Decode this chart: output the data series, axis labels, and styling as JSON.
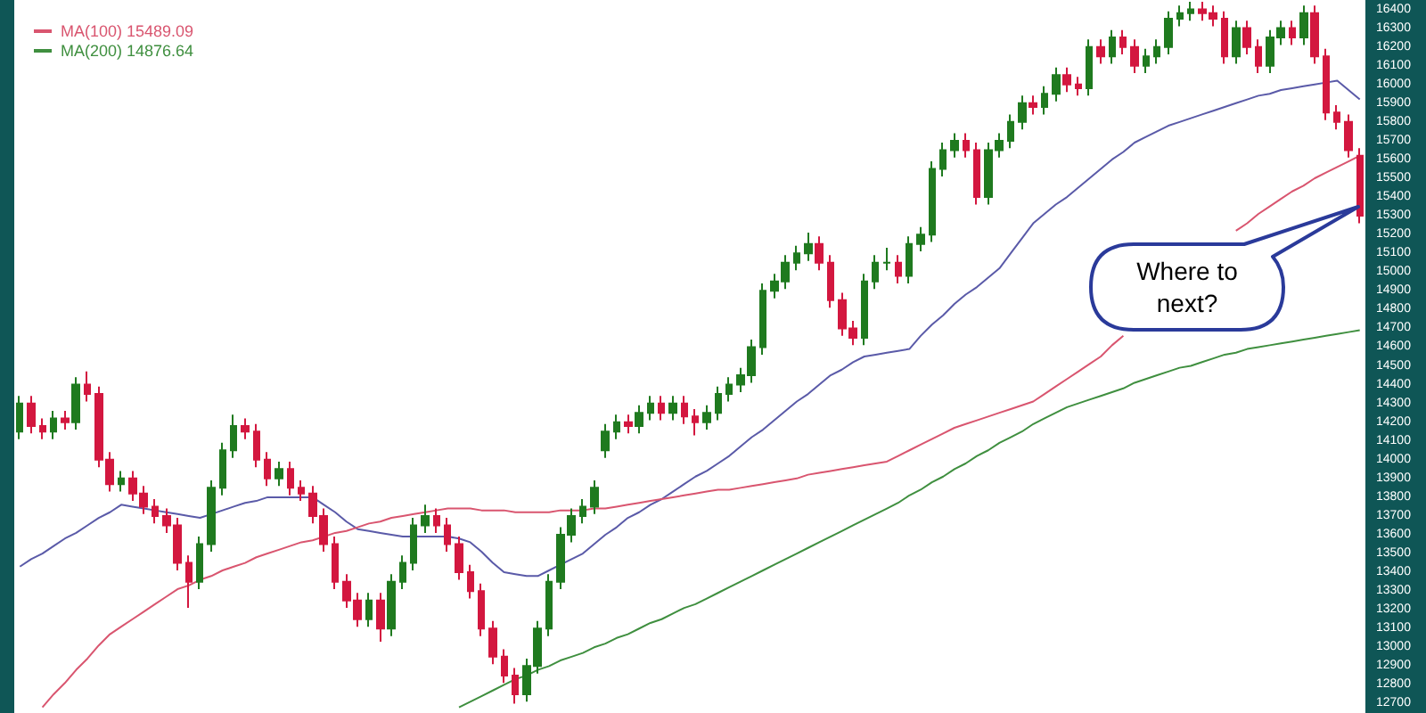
{
  "chart_data": {
    "type": "candlestick",
    "legend": "top left",
    "line_style": "solid",
    "tick_labels": "y",
    "colors": [
      "#1f7a1f",
      "#d3173f",
      "#d3173f",
      "#1f7a1f",
      "#d3173f",
      "#1f7a1f",
      "#d3173f",
      "#d3173f",
      "#d3173f",
      "#1f7a1f",
      "#d3173f",
      "#d3173f",
      "#d3173f",
      "#d3173f",
      "#d3173f",
      "#d3173f",
      "#1f7a1f",
      "#1f7a1f",
      "#1f7a1f",
      "#1f7a1f",
      "#d3173f",
      "#d3173f",
      "#d3173f",
      "#1f7a1f",
      "#d3173f",
      "#d3173f",
      "#d3173f",
      "#d3173f",
      "#d3173f",
      "#d3173f",
      "#d3173f",
      "#1f7a1f",
      "#d3173f",
      "#1f7a1f",
      "#1f7a1f",
      "#1f7a1f",
      "#1f7a1f",
      "#d3173f",
      "#d3173f",
      "#d3173f",
      "#d3173f",
      "#d3173f",
      "#d3173f",
      "#d3173f",
      "#d3173f",
      "#1f7a1f",
      "#1f7a1f",
      "#1f7a1f",
      "#1f7a1f",
      "#1f7a1f",
      "#1f7a1f",
      "#1f7a1f",
      "#1f7a1f",
      "#1f7a1f",
      "#d3173f",
      "#1f7a1f",
      "#1f7a1f",
      "#d3173f",
      "#1f7a1f",
      "#d3173f",
      "#d3173f",
      "#1f7a1f",
      "#1f7a1f",
      "#1f7a1f",
      "#1f7a1f",
      "#1f7a1f",
      "#1f7a1f",
      "#1f7a1f",
      "#1f7a1f",
      "#1f7a1f",
      "#1f7a1f",
      "#d3173f",
      "#d3173f",
      "#d3173f",
      "#d3173f",
      "#1f7a1f",
      "#1f7a1f",
      "#1f7a1f",
      "#d3173f",
      "#1f7a1f",
      "#1f7a1f",
      "#1f7a1f",
      "#1f7a1f",
      "#1f7a1f",
      "#d3173f",
      "#d3173f",
      "#1f7a1f",
      "#1f7a1f",
      "#1f7a1f",
      "#1f7a1f",
      "#d3173f",
      "#1f7a1f",
      "#1f7a1f",
      "#d3173f",
      "#d3173f",
      "#1f7a1f",
      "#d3173f",
      "#1f7a1f",
      "#d3173f",
      "#d3173f",
      "#1f7a1f",
      "#1f7a1f",
      "#1f7a1f",
      "#1f7a1f",
      "#1f7a1f",
      "#d3173f",
      "#d3173f",
      "#d3173f",
      "#1f7a1f",
      "#d3173f",
      "#d3173f",
      "#1f7a1f",
      "#1f7a1f",
      "#d3173f",
      "#1f7a1f",
      "#d3173f",
      "#d3173f",
      "#d3173f",
      "#d3173f",
      "#d3173f"
    ],
    "ylim": [
      12650,
      16450
    ],
    "yticks": [
      12700,
      12800,
      12900,
      13000,
      13100,
      13200,
      13300,
      13400,
      13500,
      13600,
      13700,
      13800,
      13900,
      14000,
      14100,
      14200,
      14300,
      14400,
      14500,
      14600,
      14700,
      14800,
      14900,
      15000,
      15100,
      15200,
      15300,
      15400,
      15500,
      15600,
      15700,
      15800,
      15900,
      16000,
      16100,
      16200,
      16300,
      16400
    ],
    "annotations": [
      "Where to next?"
    ],
    "categories": [
      null,
      null,
      null,
      null,
      null,
      null,
      null,
      null,
      null,
      null,
      null,
      null,
      null,
      null,
      null,
      null,
      null,
      null,
      null,
      null,
      null,
      null,
      null,
      null,
      null,
      null,
      null,
      null,
      null,
      null,
      null,
      null,
      null,
      null,
      null,
      null,
      null,
      null,
      null,
      null,
      null,
      null,
      null,
      null,
      null,
      null,
      null,
      null,
      null,
      null,
      null,
      null,
      null,
      null,
      null,
      null,
      null,
      null,
      null,
      null,
      null,
      null,
      null,
      null,
      null,
      null,
      null,
      null,
      null,
      null,
      null,
      null,
      null,
      null,
      null,
      null,
      null,
      null,
      null,
      null,
      null,
      null,
      null,
      null,
      null,
      null,
      null,
      null,
      null,
      null,
      null,
      null,
      null,
      null,
      null,
      null,
      null,
      null,
      null,
      null,
      null,
      null,
      null,
      null,
      null,
      null,
      null,
      null,
      null,
      null,
      null,
      null,
      null,
      null,
      null,
      null,
      null,
      null,
      null,
      null
    ],
    "ohlc": [
      [
        14150,
        14340,
        14110,
        14300
      ],
      [
        14300,
        14340,
        14140,
        14180
      ],
      [
        14180,
        14220,
        14110,
        14150
      ],
      [
        14150,
        14260,
        14110,
        14220
      ],
      [
        14220,
        14260,
        14160,
        14200
      ],
      [
        14200,
        14440,
        14160,
        14400
      ],
      [
        14400,
        14470,
        14310,
        14350
      ],
      [
        14350,
        14390,
        13960,
        14000
      ],
      [
        14000,
        14040,
        13830,
        13870
      ],
      [
        13870,
        13940,
        13830,
        13900
      ],
      [
        13900,
        13940,
        13780,
        13820
      ],
      [
        13820,
        13860,
        13710,
        13750
      ],
      [
        13750,
        13790,
        13660,
        13700
      ],
      [
        13700,
        13740,
        13610,
        13650
      ],
      [
        13650,
        13690,
        13410,
        13450
      ],
      [
        13450,
        13490,
        13210,
        13350
      ],
      [
        13350,
        13590,
        13310,
        13550
      ],
      [
        13550,
        13890,
        13510,
        13850
      ],
      [
        13850,
        14090,
        13810,
        14050
      ],
      [
        14050,
        14240,
        14010,
        14180
      ],
      [
        14180,
        14220,
        14110,
        14150
      ],
      [
        14150,
        14190,
        13960,
        14000
      ],
      [
        14000,
        14040,
        13860,
        13900
      ],
      [
        13900,
        13990,
        13860,
        13950
      ],
      [
        13950,
        13990,
        13810,
        13850
      ],
      [
        13850,
        13890,
        13780,
        13820
      ],
      [
        13820,
        13860,
        13660,
        13700
      ],
      [
        13700,
        13740,
        13510,
        13550
      ],
      [
        13550,
        13590,
        13310,
        13350
      ],
      [
        13350,
        13390,
        13210,
        13250
      ],
      [
        13250,
        13290,
        13110,
        13150
      ],
      [
        13150,
        13290,
        13110,
        13250
      ],
      [
        13250,
        13290,
        13030,
        13100
      ],
      [
        13100,
        13390,
        13060,
        13350
      ],
      [
        13350,
        13490,
        13310,
        13450
      ],
      [
        13450,
        13690,
        13410,
        13650
      ],
      [
        13650,
        13760,
        13610,
        13700
      ],
      [
        13700,
        13740,
        13610,
        13650
      ],
      [
        13650,
        13690,
        13510,
        13550
      ],
      [
        13550,
        13590,
        13360,
        13400
      ],
      [
        13400,
        13440,
        13260,
        13300
      ],
      [
        13300,
        13340,
        13060,
        13100
      ],
      [
        13100,
        13140,
        12910,
        12950
      ],
      [
        12950,
        12990,
        12810,
        12850
      ],
      [
        12850,
        12890,
        12700,
        12750
      ],
      [
        12750,
        12940,
        12710,
        12900
      ],
      [
        12900,
        13140,
        12860,
        13100
      ],
      [
        13100,
        13390,
        13060,
        13350
      ],
      [
        13350,
        13640,
        13310,
        13600
      ],
      [
        13600,
        13740,
        13560,
        13700
      ],
      [
        13700,
        13790,
        13660,
        13750
      ],
      [
        13750,
        13890,
        13710,
        13850
      ],
      [
        14050,
        14190,
        14010,
        14150
      ],
      [
        14150,
        14240,
        14110,
        14200
      ],
      [
        14200,
        14240,
        14140,
        14180
      ],
      [
        14180,
        14290,
        14140,
        14250
      ],
      [
        14250,
        14340,
        14210,
        14300
      ],
      [
        14300,
        14340,
        14210,
        14250
      ],
      [
        14250,
        14340,
        14210,
        14300
      ],
      [
        14300,
        14340,
        14190,
        14230
      ],
      [
        14230,
        14270,
        14130,
        14200
      ],
      [
        14200,
        14290,
        14160,
        14250
      ],
      [
        14250,
        14390,
        14210,
        14350
      ],
      [
        14350,
        14440,
        14310,
        14400
      ],
      [
        14400,
        14490,
        14360,
        14450
      ],
      [
        14450,
        14640,
        14410,
        14600
      ],
      [
        14600,
        14940,
        14560,
        14900
      ],
      [
        14900,
        14990,
        14860,
        14950
      ],
      [
        14950,
        15090,
        14910,
        15050
      ],
      [
        15050,
        15140,
        15010,
        15100
      ],
      [
        15100,
        15210,
        15060,
        15150
      ],
      [
        15150,
        15190,
        15010,
        15050
      ],
      [
        15050,
        15090,
        14810,
        14850
      ],
      [
        14850,
        14890,
        14660,
        14700
      ],
      [
        14700,
        14740,
        14610,
        14650
      ],
      [
        14650,
        14990,
        14610,
        14950
      ],
      [
        14950,
        15090,
        14910,
        15050
      ],
      [
        15050,
        15130,
        15010,
        15050
      ],
      [
        15050,
        15090,
        14940,
        14980
      ],
      [
        14980,
        15190,
        14940,
        15150
      ],
      [
        15150,
        15240,
        15110,
        15200
      ],
      [
        15200,
        15590,
        15160,
        15550
      ],
      [
        15550,
        15690,
        15510,
        15650
      ],
      [
        15650,
        15740,
        15610,
        15700
      ],
      [
        15700,
        15740,
        15610,
        15650
      ],
      [
        15650,
        15690,
        15360,
        15400
      ],
      [
        15400,
        15690,
        15360,
        15650
      ],
      [
        15650,
        15740,
        15610,
        15700
      ],
      [
        15700,
        15840,
        15660,
        15800
      ],
      [
        15800,
        15940,
        15760,
        15900
      ],
      [
        15900,
        15940,
        15840,
        15880
      ],
      [
        15880,
        15990,
        15840,
        15950
      ],
      [
        15950,
        16090,
        15910,
        16050
      ],
      [
        16050,
        16090,
        15960,
        16000
      ],
      [
        16000,
        16040,
        15940,
        15980
      ],
      [
        15980,
        16240,
        15940,
        16200
      ],
      [
        16200,
        16240,
        16110,
        16150
      ],
      [
        16150,
        16290,
        16110,
        16250
      ],
      [
        16250,
        16290,
        16160,
        16200
      ],
      [
        16200,
        16240,
        16060,
        16100
      ],
      [
        16100,
        16190,
        16060,
        16150
      ],
      [
        16150,
        16240,
        16110,
        16200
      ],
      [
        16200,
        16390,
        16160,
        16350
      ],
      [
        16350,
        16420,
        16310,
        16380
      ],
      [
        16380,
        16440,
        16340,
        16400
      ],
      [
        16400,
        16440,
        16340,
        16380
      ],
      [
        16380,
        16420,
        16310,
        16350
      ],
      [
        16350,
        16390,
        16110,
        16150
      ],
      [
        16150,
        16340,
        16110,
        16300
      ],
      [
        16300,
        16340,
        16160,
        16200
      ],
      [
        16200,
        16240,
        16060,
        16100
      ],
      [
        16100,
        16290,
        16060,
        16250
      ],
      [
        16250,
        16340,
        16210,
        16300
      ],
      [
        16300,
        16340,
        16210,
        16250
      ],
      [
        16250,
        16420,
        16210,
        16380
      ],
      [
        16380,
        16420,
        16110,
        16150
      ],
      [
        16150,
        16190,
        15810,
        15850
      ],
      [
        15850,
        15890,
        15760,
        15800
      ],
      [
        15800,
        15840,
        15610,
        15650
      ],
      [
        15620,
        15660,
        15260,
        15300
      ]
    ],
    "series": [
      {
        "type": "line",
        "color": "#5a5aa8",
        "values": [
          13430,
          13470,
          13500,
          13540,
          13580,
          13610,
          13650,
          13690,
          13720,
          13760,
          13750,
          13740,
          13730,
          13720,
          13710,
          13700,
          13690,
          13710,
          13730,
          13750,
          13770,
          13780,
          13800,
          13800,
          13800,
          13800,
          13800,
          13760,
          13720,
          13670,
          13630,
          13620,
          13610,
          13600,
          13590,
          13590,
          13590,
          13590,
          13590,
          13580,
          13560,
          13510,
          13450,
          13400,
          13390,
          13380,
          13380,
          13410,
          13440,
          13470,
          13500,
          13550,
          13600,
          13640,
          13690,
          13720,
          13760,
          13790,
          13830,
          13870,
          13910,
          13940,
          13980,
          14020,
          14070,
          14120,
          14160,
          14210,
          14260,
          14310,
          14350,
          14400,
          14450,
          14480,
          14520,
          14550,
          14560,
          14570,
          14580,
          14590,
          14660,
          14720,
          14770,
          14830,
          14880,
          14920,
          14970,
          15020,
          15100,
          15180,
          15260,
          15310,
          15360,
          15400,
          15450,
          15500,
          15550,
          15600,
          15640,
          15690,
          15720,
          15750,
          15780,
          15800,
          15820,
          15840,
          15860,
          15880,
          15900,
          15920,
          15940,
          15950,
          15970,
          15980,
          15990,
          16000,
          16010,
          16020,
          15970,
          15920
        ]
      },
      {
        "type": "line",
        "name": "MA(100) 15489.09",
        "color": "#d9556f",
        "values": [
          null,
          null,
          12680,
          12750,
          12810,
          12880,
          12940,
          13010,
          13070,
          13110,
          13150,
          13190,
          13230,
          13270,
          13310,
          13330,
          13360,
          13380,
          13410,
          13430,
          13450,
          13480,
          13500,
          13520,
          13540,
          13560,
          13570,
          13590,
          13610,
          13620,
          13640,
          13660,
          13670,
          13690,
          13700,
          13710,
          13720,
          13730,
          13740,
          13740,
          13740,
          13730,
          13730,
          13730,
          13720,
          13720,
          13720,
          13720,
          13730,
          13730,
          13730,
          13740,
          13740,
          13750,
          13760,
          13770,
          13780,
          13790,
          13800,
          13810,
          13820,
          13830,
          13840,
          13840,
          13850,
          13860,
          13870,
          13880,
          13890,
          13900,
          13920,
          13930,
          13940,
          13950,
          13960,
          13970,
          13980,
          13990,
          14020,
          14050,
          14080,
          14110,
          14140,
          14170,
          14190,
          14210,
          14230,
          14250,
          14270,
          14290,
          14310,
          14350,
          14390,
          14430,
          14470,
          14510,
          14550,
          14610,
          14660,
          null,
          null,
          null,
          null,
          null,
          null,
          null,
          null,
          null,
          15220,
          15260,
          15310,
          15350,
          15390,
          15430,
          15460,
          15500,
          15530,
          15560,
          15590,
          15620
        ]
      },
      {
        "type": "line",
        "name": "MA(200) 14876.64",
        "color": "#3f8f3f",
        "values": [
          null,
          null,
          null,
          null,
          null,
          null,
          null,
          null,
          null,
          null,
          null,
          null,
          null,
          null,
          null,
          null,
          null,
          null,
          null,
          null,
          null,
          null,
          null,
          null,
          null,
          null,
          null,
          null,
          null,
          null,
          null,
          null,
          null,
          null,
          null,
          null,
          null,
          null,
          null,
          12680,
          12710,
          12740,
          12770,
          12800,
          12830,
          12850,
          12880,
          12900,
          12930,
          12950,
          12970,
          13000,
          13020,
          13050,
          13070,
          13100,
          13130,
          13150,
          13180,
          13210,
          13230,
          13260,
          13290,
          13320,
          13350,
          13380,
          13410,
          13440,
          13470,
          13500,
          13530,
          13560,
          13590,
          13620,
          13650,
          13680,
          13710,
          13740,
          13770,
          13810,
          13840,
          13880,
          13910,
          13950,
          13980,
          14020,
          14050,
          14090,
          14120,
          14150,
          14190,
          14220,
          14250,
          14280,
          14300,
          14320,
          14340,
          14360,
          14380,
          14410,
          14430,
          14450,
          14470,
          14490,
          14500,
          14520,
          14540,
          14560,
          14570,
          14590,
          14600,
          14610,
          14620,
          14630,
          14640,
          14650,
          14660,
          14670,
          14680,
          14690
        ]
      }
    ]
  }
}
